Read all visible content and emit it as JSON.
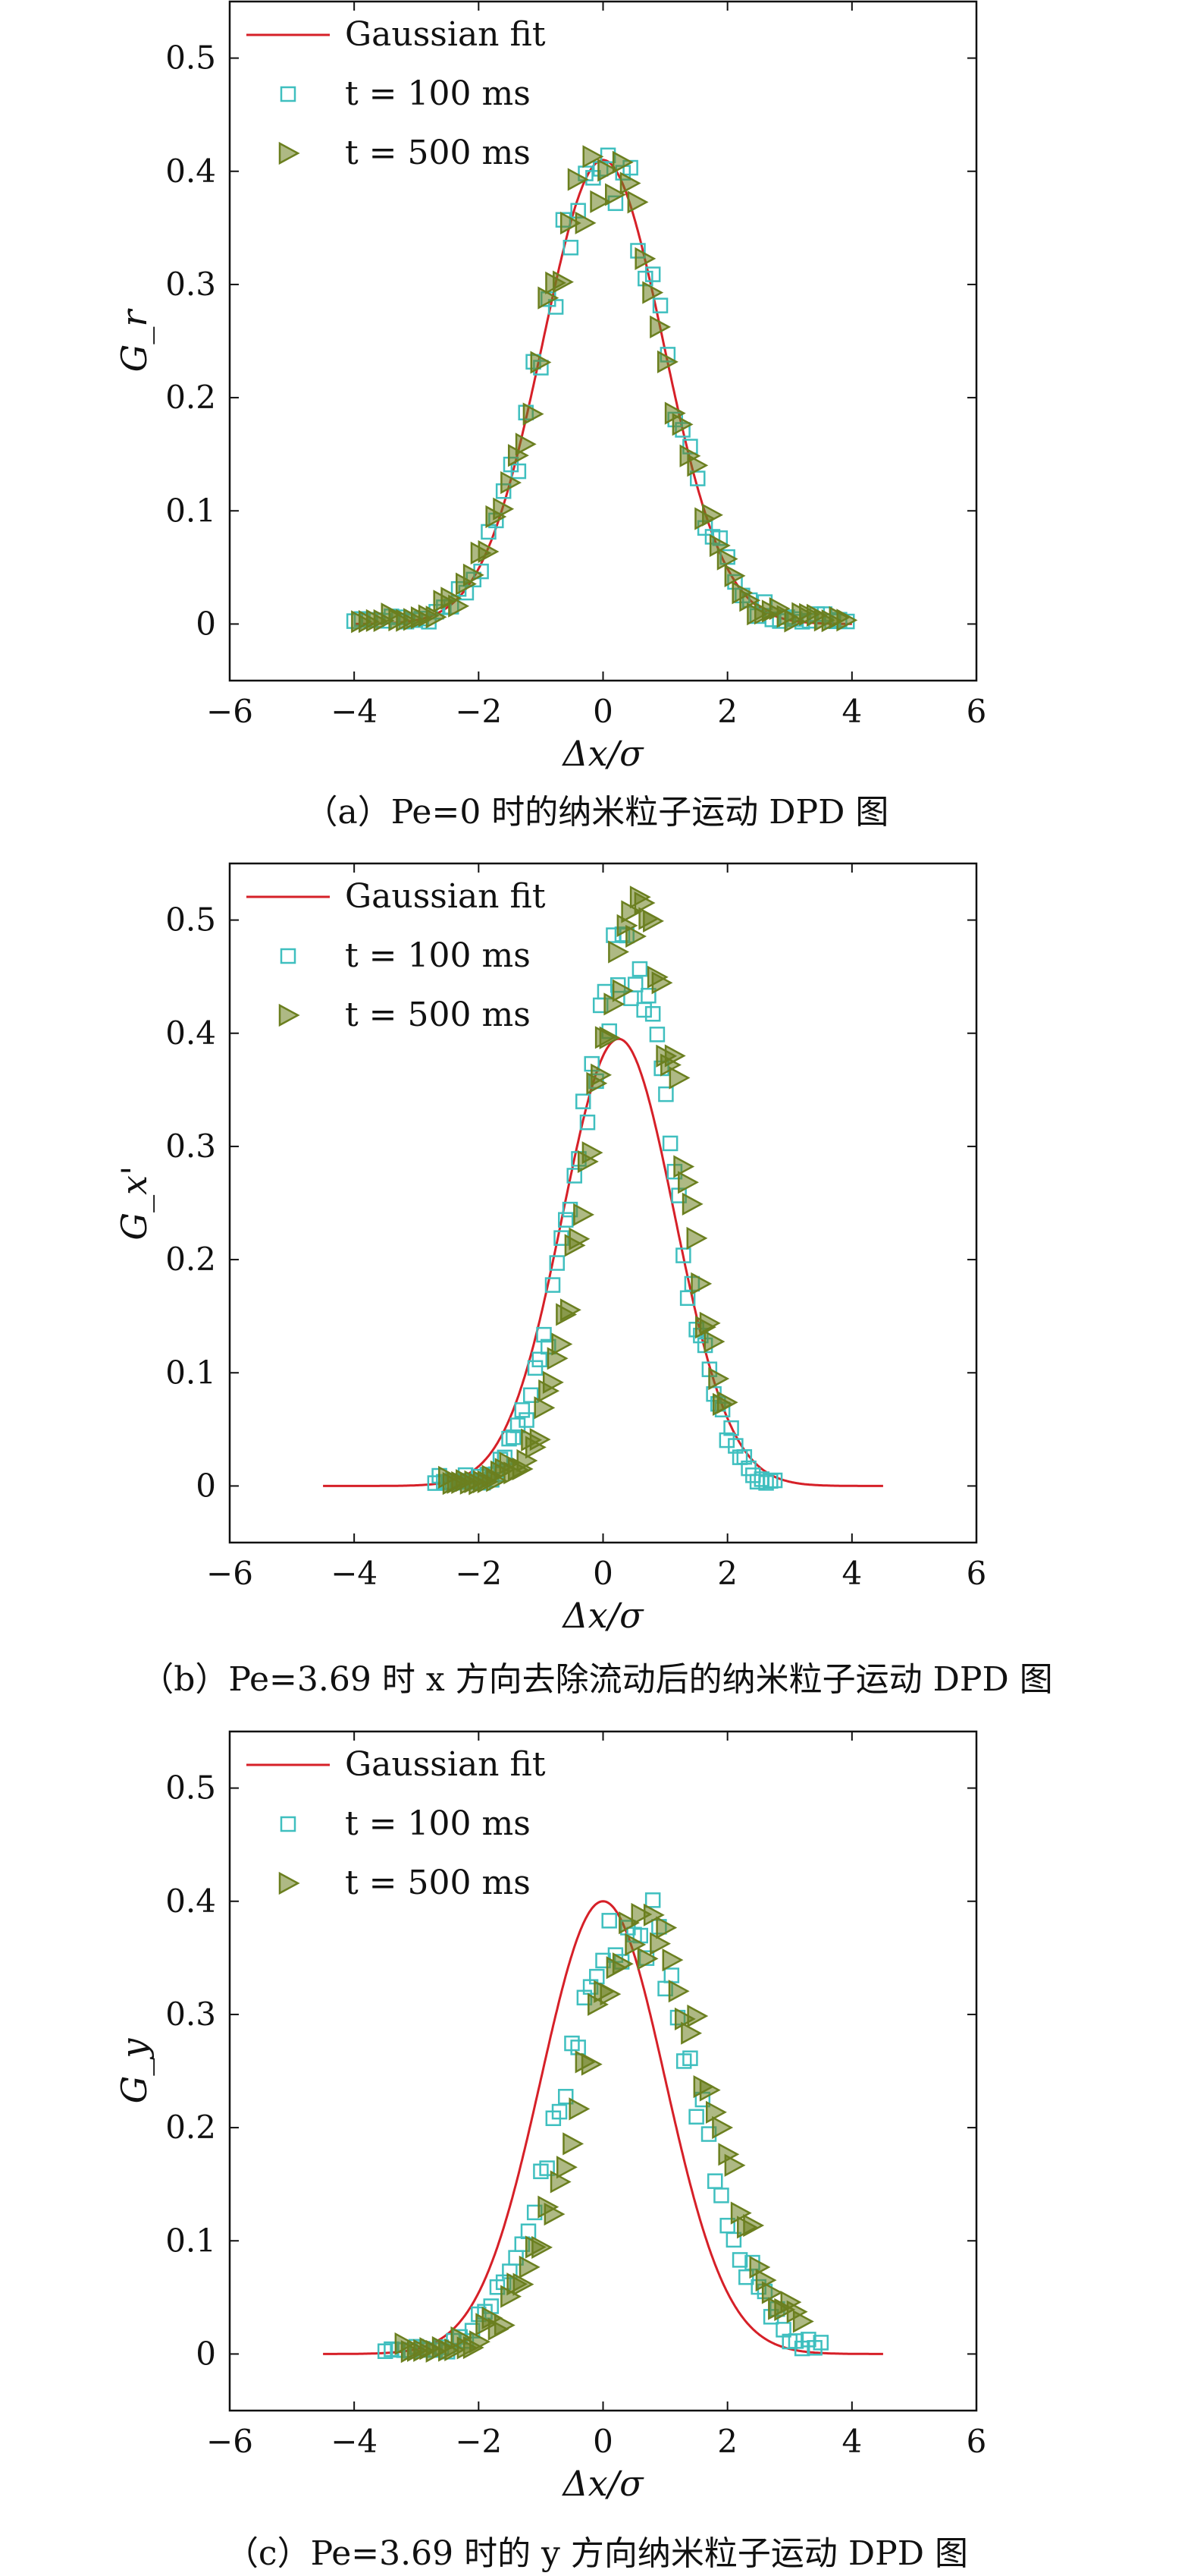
{
  "series_colors": {
    "gaussian": "#d62028",
    "t100": "#3fbfbf",
    "t500": "#6b7f1f"
  },
  "chart_data": [
    {
      "type": "scatter",
      "caption": "（a）Pe=0 时的纳米粒子运动 DPD 图",
      "xlabel": "Δx/σ",
      "ylabel": "G_r",
      "xlim": [
        -6,
        6
      ],
      "ylim": [
        -0.05,
        0.55
      ],
      "xticks": [
        -6,
        -4,
        -2,
        0,
        2,
        4,
        6
      ],
      "yticks": [
        0,
        0.1,
        0.2,
        0.3,
        0.4,
        0.5
      ],
      "legend_position": "top-left",
      "series": [
        {
          "name": "Gaussian fit",
          "kind": "line",
          "mu": 0,
          "sigma": 0.97,
          "amp": 0.41,
          "xrange": [
            -4,
            4
          ]
        },
        {
          "name": "t = 100 ms",
          "kind": "marker-square",
          "mu": 0,
          "sigma": 0.97,
          "amp": 0.41,
          "xrange": [
            -4,
            4
          ],
          "step": 0.12,
          "skew": 0
        },
        {
          "name": "t = 500 ms",
          "kind": "marker-triangle",
          "mu": 0,
          "sigma": 0.97,
          "amp": 0.41,
          "xrange": [
            -3.9,
            3.9
          ],
          "step": 0.12,
          "skew": 0
        }
      ]
    },
    {
      "type": "scatter",
      "caption": "（b）Pe=3.69 时 x 方向去除流动后的纳米粒子运动 DPD 图",
      "xlabel": "Δx/σ",
      "ylabel": "G_x'",
      "xlim": [
        -6,
        6
      ],
      "ylim": [
        -0.05,
        0.55
      ],
      "xticks": [
        -6,
        -4,
        -2,
        0,
        2,
        4,
        6
      ],
      "yticks": [
        0,
        0.1,
        0.2,
        0.3,
        0.4,
        0.5
      ],
      "legend_position": "top-left",
      "series": [
        {
          "name": "Gaussian fit",
          "kind": "line",
          "mu": 0.25,
          "sigma": 0.9,
          "amp": 0.395,
          "xrange": [
            -4.5,
            4.5
          ]
        },
        {
          "name": "t = 100 ms",
          "kind": "marker-square",
          "mu": 0.35,
          "sigma": 0.8,
          "amp": 0.46,
          "xrange": [
            -2.7,
            2.8
          ],
          "step": 0.07,
          "skew": 0.35
        },
        {
          "name": "t = 500 ms",
          "kind": "marker-triangle",
          "mu": 0.55,
          "sigma": 0.75,
          "amp": 0.49,
          "xrange": [
            -2.5,
            2.0
          ],
          "step": 0.07,
          "skew": 0.35
        }
      ]
    },
    {
      "type": "scatter",
      "caption": "（c）Pe=3.69 时的 y 方向纳米粒子运动 DPD 图",
      "xlabel": "Δx/σ",
      "ylabel": "G_y",
      "xlim": [
        -6,
        6
      ],
      "ylim": [
        -0.05,
        0.55
      ],
      "xticks": [
        -6,
        -4,
        -2,
        0,
        2,
        4,
        6
      ],
      "yticks": [
        0,
        0.1,
        0.2,
        0.3,
        0.4,
        0.5
      ],
      "legend_position": "top-left",
      "series": [
        {
          "name": "Gaussian fit",
          "kind": "line",
          "mu": 0,
          "sigma": 1.0,
          "amp": 0.4,
          "xrange": [
            -4.5,
            4.5
          ]
        },
        {
          "name": "t = 100 ms",
          "kind": "marker-square",
          "mu": 0.45,
          "sigma": 1.05,
          "amp": 0.385,
          "xrange": [
            -3.5,
            3.5
          ],
          "step": 0.1,
          "skew": 0.0
        },
        {
          "name": "t = 500 ms",
          "kind": "marker-triangle",
          "mu": 0.7,
          "sigma": 1.05,
          "amp": 0.38,
          "xrange": [
            -3.2,
            3.2
          ],
          "step": 0.1,
          "skew": 0.0
        }
      ]
    }
  ]
}
